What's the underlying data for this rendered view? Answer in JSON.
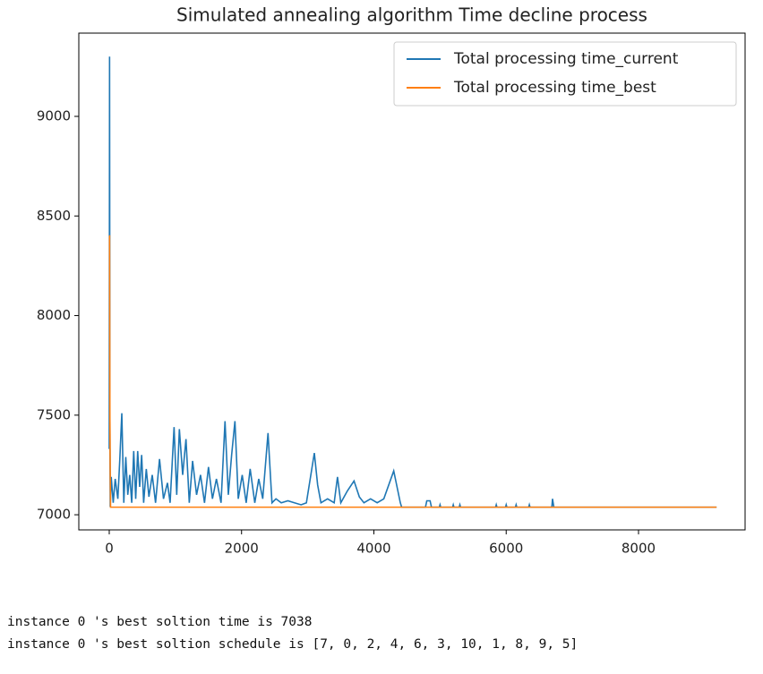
{
  "chart_data": {
    "type": "line",
    "title": "Simulated annealing algorithm Time decline process",
    "xlim": [
      -460,
      9611
    ],
    "ylim": [
      6924,
      9418
    ],
    "xticks": [
      0,
      2000,
      4000,
      6000,
      8000
    ],
    "yticks": [
      7000,
      7500,
      8000,
      8500,
      9000
    ],
    "legend": "upper right",
    "series": [
      {
        "name": "Total processing time_current",
        "color": "#1f77b4",
        "x": [
          0,
          5,
          10,
          15,
          30,
          60,
          90,
          130,
          160,
          190,
          220,
          250,
          280,
          310,
          340,
          370,
          400,
          430,
          460,
          490,
          520,
          560,
          600,
          650,
          700,
          760,
          820,
          880,
          920,
          980,
          1020,
          1060,
          1110,
          1160,
          1210,
          1260,
          1320,
          1380,
          1440,
          1500,
          1560,
          1620,
          1690,
          1750,
          1800,
          1850,
          1900,
          1950,
          2010,
          2070,
          2130,
          2200,
          2260,
          2320,
          2400,
          2460,
          2520,
          2600,
          2700,
          2800,
          2900,
          2980,
          3100,
          3150,
          3200,
          3300,
          3400,
          3450,
          3500,
          3600,
          3700,
          3780,
          3850,
          3950,
          4050,
          4150,
          4300,
          4400,
          4420,
          4780,
          4800,
          4850,
          4870,
          4990,
          5000,
          5010,
          5190,
          5200,
          5210,
          5290,
          5300,
          5310,
          5840,
          5850,
          5860,
          5990,
          6000,
          6010,
          6140,
          6150,
          6160,
          6340,
          6350,
          6360,
          6690,
          6700,
          6720,
          9180
        ],
        "values": [
          7330,
          9300,
          7480,
          7040,
          7190,
          7060,
          7180,
          7080,
          7280,
          7510,
          7060,
          7290,
          7100,
          7200,
          7060,
          7320,
          7080,
          7320,
          7140,
          7300,
          7060,
          7230,
          7090,
          7200,
          7060,
          7280,
          7080,
          7160,
          7060,
          7440,
          7100,
          7430,
          7200,
          7380,
          7060,
          7270,
          7100,
          7200,
          7060,
          7240,
          7080,
          7180,
          7060,
          7470,
          7100,
          7300,
          7470,
          7080,
          7200,
          7060,
          7230,
          7060,
          7180,
          7080,
          7410,
          7060,
          7080,
          7060,
          7070,
          7060,
          7050,
          7060,
          7310,
          7150,
          7060,
          7080,
          7060,
          7190,
          7060,
          7120,
          7170,
          7090,
          7060,
          7080,
          7060,
          7080,
          7220,
          7060,
          7038,
          7038,
          7070,
          7070,
          7038,
          7038,
          7050,
          7038,
          7038,
          7050,
          7038,
          7038,
          7050,
          7038,
          7038,
          7050,
          7038,
          7038,
          7050,
          7038,
          7038,
          7050,
          7038,
          7038,
          7050,
          7038,
          7038,
          7080,
          7038,
          7038
        ]
      },
      {
        "name": "Total processing time_best",
        "color": "#ff7f0e",
        "x": [
          0,
          5,
          10,
          15,
          20,
          9180
        ],
        "values": [
          8400,
          8400,
          7480,
          7200,
          7038,
          7038
        ]
      }
    ]
  },
  "output": {
    "lines": [
      "instance 0 's best soltion time is 7038",
      "instance 0 's best soltion schedule is [7, 0, 2, 4, 6, 3, 10, 1, 8, 9, 5]"
    ]
  }
}
